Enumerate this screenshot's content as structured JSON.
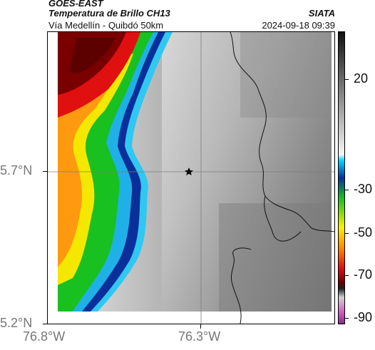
{
  "header": {
    "satellite": "GOES-EAST",
    "product": "Temperatura de Brillo CH13",
    "route": "Vía Medellín - Quibdó 50km",
    "brand": "SIATA",
    "datetime": "2024-09-18 09:39"
  },
  "axes": {
    "lat_labels": [
      "5.7°N",
      "5.2°N"
    ],
    "lon_labels": [
      "76.8°W",
      "76.3°W"
    ]
  },
  "colorbar": {
    "labels": [
      "20",
      "-30",
      "-50",
      "-70",
      "-90"
    ],
    "colors": {
      "warm_dark": "#1a1a1a",
      "warm_light": "#f2f2f2",
      "cyan": "#00d8ff",
      "blue": "#0a2f9a",
      "green": "#18c020",
      "yellow": "#f8f000",
      "orange": "#ff8a00",
      "red": "#e01010",
      "dark_red": "#6a0000",
      "magenta": "#c040b0"
    }
  },
  "map": {
    "marker_icon": "star-icon"
  }
}
